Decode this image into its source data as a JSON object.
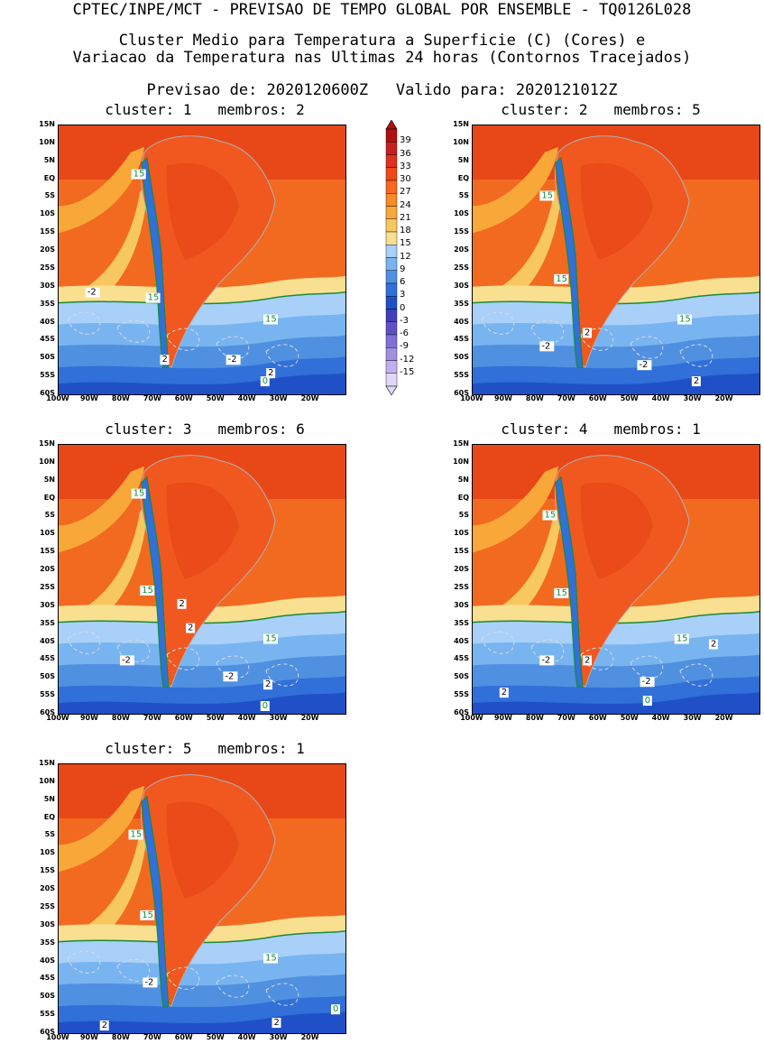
{
  "header": {
    "line1": "CPTEC/INPE/MCT - PREVISAO DE TEMPO GLOBAL POR ENSEMBLE - TQ0126L028",
    "line2": "Cluster Medio para Temperatura a Superficie (C) (Cores) e",
    "line3": "Variacao da Temperatura nas Ultimas 24 horas (Contornos Tracejados)",
    "line4": "Previsao de: 2020120600Z   Valido para: 2020121012Z"
  },
  "y_ticks": [
    "15N",
    "10N",
    "5N",
    "EQ",
    "5S",
    "10S",
    "15S",
    "20S",
    "25S",
    "30S",
    "35S",
    "40S",
    "45S",
    "50S",
    "55S",
    "60S"
  ],
  "x_ticks": [
    "100W",
    "90W",
    "80W",
    "70W",
    "60W",
    "50W",
    "40W",
    "30W",
    "20W"
  ],
  "colorbar": {
    "labels": [
      "39",
      "36",
      "33",
      "30",
      "27",
      "24",
      "21",
      "18",
      "15",
      "12",
      "9",
      "6",
      "3",
      "0",
      "-3",
      "-6",
      "-9",
      "-12",
      "-15"
    ],
    "colors": [
      "#b01010",
      "#c82020",
      "#e03020",
      "#f04818",
      "#f86820",
      "#f88a28",
      "#f8a838",
      "#f8c860",
      "#f8e090",
      "#a8d0f8",
      "#78b4f0",
      "#5090e0",
      "#3070d8",
      "#2050c8",
      "#4040b8",
      "#6050c8",
      "#8070d8",
      "#a090e0",
      "#c0b0f0",
      "#e0d8f8"
    ]
  },
  "panels": [
    {
      "title": "cluster: 1   membros: 2",
      "labels": [
        {
          "t": "15",
          "c": "g"
        },
        {
          "t": "-2",
          "c": "w"
        },
        {
          "t": "15",
          "c": "g"
        },
        {
          "t": "15",
          "c": "g"
        },
        {
          "t": "2",
          "c": "w"
        },
        {
          "t": "-2",
          "c": "w"
        },
        {
          "t": "2",
          "c": "w"
        },
        {
          "t": "0",
          "c": "g"
        }
      ]
    },
    {
      "title": "cluster: 2   membros: 5",
      "labels": [
        {
          "t": "15",
          "c": "g"
        },
        {
          "t": "15",
          "c": "g"
        },
        {
          "t": "15",
          "c": "g"
        },
        {
          "t": "-2",
          "c": "w"
        },
        {
          "t": "2",
          "c": "w"
        },
        {
          "t": "-2",
          "c": "w"
        },
        {
          "t": "2",
          "c": "w"
        }
      ]
    },
    {
      "title": "cluster: 3   membros: 6",
      "labels": [
        {
          "t": "15",
          "c": "g"
        },
        {
          "t": "15",
          "c": "g"
        },
        {
          "t": "2",
          "c": "w"
        },
        {
          "t": "2",
          "c": "w"
        },
        {
          "t": "15",
          "c": "g"
        },
        {
          "t": "-2",
          "c": "w"
        },
        {
          "t": "-2",
          "c": "w"
        },
        {
          "t": "2",
          "c": "w"
        },
        {
          "t": "0",
          "c": "g"
        }
      ]
    },
    {
      "title": "cluster: 4   membros: 1",
      "labels": [
        {
          "t": "15",
          "c": "g"
        },
        {
          "t": "15",
          "c": "g"
        },
        {
          "t": "15",
          "c": "g"
        },
        {
          "t": "2",
          "c": "w"
        },
        {
          "t": "-2",
          "c": "w"
        },
        {
          "t": "2",
          "c": "w"
        },
        {
          "t": "-2",
          "c": "w"
        },
        {
          "t": "2",
          "c": "w"
        },
        {
          "t": "0",
          "c": "g"
        }
      ]
    },
    {
      "title": "cluster: 5   membros: 1",
      "labels": [
        {
          "t": "15",
          "c": "g"
        },
        {
          "t": "15",
          "c": "g"
        },
        {
          "t": "15",
          "c": "g"
        },
        {
          "t": "-2",
          "c": "w"
        },
        {
          "t": "2",
          "c": "w"
        },
        {
          "t": "2",
          "c": "w"
        },
        {
          "t": "0",
          "c": "g"
        }
      ]
    }
  ]
}
